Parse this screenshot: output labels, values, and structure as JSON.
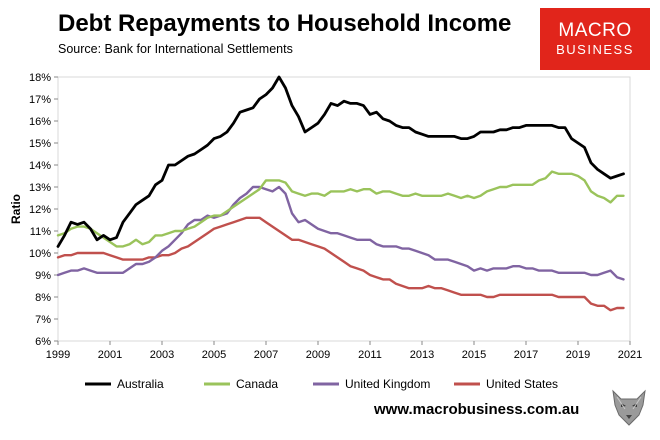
{
  "header": {
    "title": "Debt Repayments to Household Income",
    "subtitle": "Source: Bank for International Settlements"
  },
  "logo": {
    "line1": "MACRO",
    "line2": "BUSINESS"
  },
  "footer": {
    "url": "www.macrobusiness.com.au"
  },
  "icons": {
    "footer_logo": "wolf-icon"
  },
  "chart_data": {
    "type": "line",
    "ylabel": "Ratio",
    "xlabel": "",
    "xlim": [
      1999,
      2021
    ],
    "ylim": [
      6,
      18
    ],
    "x_ticks": [
      "1999",
      "2001",
      "2003",
      "2005",
      "2007",
      "2009",
      "2011",
      "2013",
      "2015",
      "2017",
      "2019",
      "2021"
    ],
    "y_ticks": [
      "6%",
      "7%",
      "8%",
      "9%",
      "10%",
      "11%",
      "12%",
      "13%",
      "14%",
      "15%",
      "16%",
      "17%",
      "18%"
    ],
    "grid": false,
    "legend_position": "bottom",
    "x": [
      1999.0,
      1999.25,
      1999.5,
      1999.75,
      2000.0,
      2000.25,
      2000.5,
      2000.75,
      2001.0,
      2001.25,
      2001.5,
      2001.75,
      2002.0,
      2002.25,
      2002.5,
      2002.75,
      2003.0,
      2003.25,
      2003.5,
      2003.75,
      2004.0,
      2004.25,
      2004.5,
      2004.75,
      2005.0,
      2005.25,
      2005.5,
      2005.75,
      2006.0,
      2006.25,
      2006.5,
      2006.75,
      2007.0,
      2007.25,
      2007.5,
      2007.75,
      2008.0,
      2008.25,
      2008.5,
      2008.75,
      2009.0,
      2009.25,
      2009.5,
      2009.75,
      2010.0,
      2010.25,
      2010.5,
      2010.75,
      2011.0,
      2011.25,
      2011.5,
      2011.75,
      2012.0,
      2012.25,
      2012.5,
      2012.75,
      2013.0,
      2013.25,
      2013.5,
      2013.75,
      2014.0,
      2014.25,
      2014.5,
      2014.75,
      2015.0,
      2015.25,
      2015.5,
      2015.75,
      2016.0,
      2016.25,
      2016.5,
      2016.75,
      2017.0,
      2017.25,
      2017.5,
      2017.75,
      2018.0,
      2018.25,
      2018.5,
      2018.75,
      2019.0,
      2019.25,
      2019.5,
      2019.75,
      2020.0,
      2020.25,
      2020.5,
      2020.75
    ],
    "series": [
      {
        "name": "Australia",
        "color": "#000000",
        "values": [
          10.3,
          10.8,
          11.4,
          11.3,
          11.4,
          11.1,
          10.6,
          10.8,
          10.6,
          10.7,
          11.4,
          11.8,
          12.2,
          12.4,
          12.6,
          13.1,
          13.3,
          14.0,
          14.0,
          14.2,
          14.4,
          14.5,
          14.7,
          14.9,
          15.2,
          15.3,
          15.5,
          15.9,
          16.4,
          16.5,
          16.6,
          17.0,
          17.2,
          17.5,
          18.0,
          17.5,
          16.7,
          16.2,
          15.5,
          15.7,
          15.9,
          16.3,
          16.8,
          16.7,
          16.9,
          16.8,
          16.8,
          16.7,
          16.3,
          16.4,
          16.1,
          16.0,
          15.8,
          15.7,
          15.7,
          15.5,
          15.4,
          15.3,
          15.3,
          15.3,
          15.3,
          15.3,
          15.2,
          15.2,
          15.3,
          15.5,
          15.5,
          15.5,
          15.6,
          15.6,
          15.7,
          15.7,
          15.8,
          15.8,
          15.8,
          15.8,
          15.8,
          15.7,
          15.7,
          15.2,
          15.0,
          14.8,
          14.1,
          13.8,
          13.6,
          13.4,
          13.5,
          13.6
        ]
      },
      {
        "name": "Canada",
        "color": "#9ac35b",
        "values": [
          10.8,
          10.9,
          11.1,
          11.2,
          11.2,
          11.1,
          10.9,
          10.7,
          10.5,
          10.3,
          10.3,
          10.4,
          10.6,
          10.4,
          10.5,
          10.8,
          10.8,
          10.9,
          11.0,
          11.0,
          11.1,
          11.2,
          11.4,
          11.6,
          11.7,
          11.7,
          11.9,
          12.1,
          12.3,
          12.5,
          12.7,
          12.9,
          13.3,
          13.3,
          13.3,
          13.2,
          12.8,
          12.7,
          12.6,
          12.7,
          12.7,
          12.6,
          12.8,
          12.8,
          12.8,
          12.9,
          12.8,
          12.9,
          12.9,
          12.7,
          12.8,
          12.8,
          12.7,
          12.6,
          12.6,
          12.7,
          12.6,
          12.6,
          12.6,
          12.6,
          12.7,
          12.6,
          12.5,
          12.6,
          12.5,
          12.6,
          12.8,
          12.9,
          13.0,
          13.0,
          13.1,
          13.1,
          13.1,
          13.1,
          13.3,
          13.4,
          13.7,
          13.6,
          13.6,
          13.6,
          13.5,
          13.3,
          12.8,
          12.6,
          12.5,
          12.3,
          12.6,
          12.6
        ]
      },
      {
        "name": "United Kingdom",
        "color": "#8064a2",
        "values": [
          9.0,
          9.1,
          9.2,
          9.2,
          9.3,
          9.2,
          9.1,
          9.1,
          9.1,
          9.1,
          9.1,
          9.3,
          9.5,
          9.5,
          9.6,
          9.8,
          10.1,
          10.3,
          10.6,
          10.9,
          11.3,
          11.5,
          11.5,
          11.7,
          11.6,
          11.7,
          11.8,
          12.2,
          12.5,
          12.7,
          13.0,
          13.0,
          12.9,
          12.8,
          13.0,
          12.7,
          11.8,
          11.4,
          11.5,
          11.3,
          11.1,
          11.0,
          10.9,
          10.9,
          10.8,
          10.7,
          10.6,
          10.6,
          10.6,
          10.4,
          10.3,
          10.3,
          10.3,
          10.2,
          10.2,
          10.1,
          10.0,
          9.9,
          9.7,
          9.7,
          9.7,
          9.6,
          9.5,
          9.4,
          9.2,
          9.3,
          9.2,
          9.3,
          9.3,
          9.3,
          9.4,
          9.4,
          9.3,
          9.3,
          9.2,
          9.2,
          9.2,
          9.1,
          9.1,
          9.1,
          9.1,
          9.1,
          9.0,
          9.0,
          9.1,
          9.2,
          8.9,
          8.8
        ]
      },
      {
        "name": "United States",
        "color": "#c0504d",
        "values": [
          9.8,
          9.9,
          9.9,
          10.0,
          10.0,
          10.0,
          10.0,
          10.0,
          9.9,
          9.8,
          9.7,
          9.7,
          9.7,
          9.7,
          9.8,
          9.8,
          9.9,
          9.9,
          10.0,
          10.2,
          10.3,
          10.5,
          10.7,
          10.9,
          11.1,
          11.2,
          11.3,
          11.4,
          11.5,
          11.6,
          11.6,
          11.6,
          11.4,
          11.2,
          11.0,
          10.8,
          10.6,
          10.6,
          10.5,
          10.4,
          10.3,
          10.2,
          10.0,
          9.8,
          9.6,
          9.4,
          9.3,
          9.2,
          9.0,
          8.9,
          8.8,
          8.8,
          8.6,
          8.5,
          8.4,
          8.4,
          8.4,
          8.5,
          8.4,
          8.4,
          8.3,
          8.2,
          8.1,
          8.1,
          8.1,
          8.1,
          8.0,
          8.0,
          8.1,
          8.1,
          8.1,
          8.1,
          8.1,
          8.1,
          8.1,
          8.1,
          8.1,
          8.0,
          8.0,
          8.0,
          8.0,
          8.0,
          7.7,
          7.6,
          7.6,
          7.4,
          7.5,
          7.5
        ]
      }
    ]
  }
}
